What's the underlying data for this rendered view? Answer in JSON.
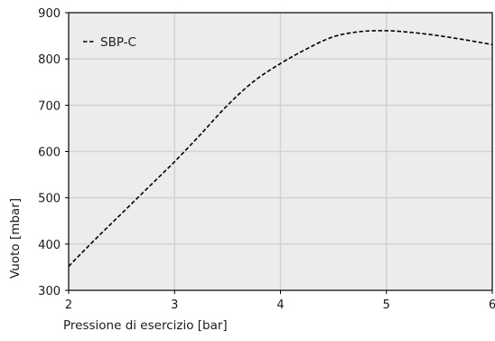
{
  "chart_data": {
    "type": "line",
    "title": "",
    "xlabel": "Pressione di esercizio [bar]",
    "ylabel": "Vuoto [mbar]",
    "xlim": [
      2,
      6
    ],
    "ylim": [
      300,
      900
    ],
    "xticks": [
      2,
      3,
      4,
      5,
      6
    ],
    "yticks": [
      300,
      400,
      500,
      600,
      700,
      800,
      900
    ],
    "xtick_labels": [
      "2",
      "3",
      "4",
      "5",
      "6"
    ],
    "ytick_labels": [
      "300",
      "400",
      "500",
      "600",
      "700",
      "800",
      "900"
    ],
    "grid": true,
    "legend_position": "top-left",
    "series": [
      {
        "name": "SBP-C",
        "line_style": "dashed",
        "color": "#000000",
        "x": [
          2.0,
          2.25,
          2.5,
          2.75,
          3.0,
          3.25,
          3.5,
          3.75,
          4.0,
          4.25,
          4.5,
          4.75,
          5.0,
          5.25,
          5.5,
          5.75,
          6.0
        ],
        "y": [
          352,
          410,
          466,
          522,
          578,
          638,
          700,
          752,
          790,
          822,
          848,
          859,
          861,
          857,
          850,
          841,
          831
        ]
      }
    ]
  },
  "colors": {
    "plot_background": "#ececec",
    "grid": "#d2d2d2",
    "frame": "#000000",
    "series": "#000000"
  }
}
